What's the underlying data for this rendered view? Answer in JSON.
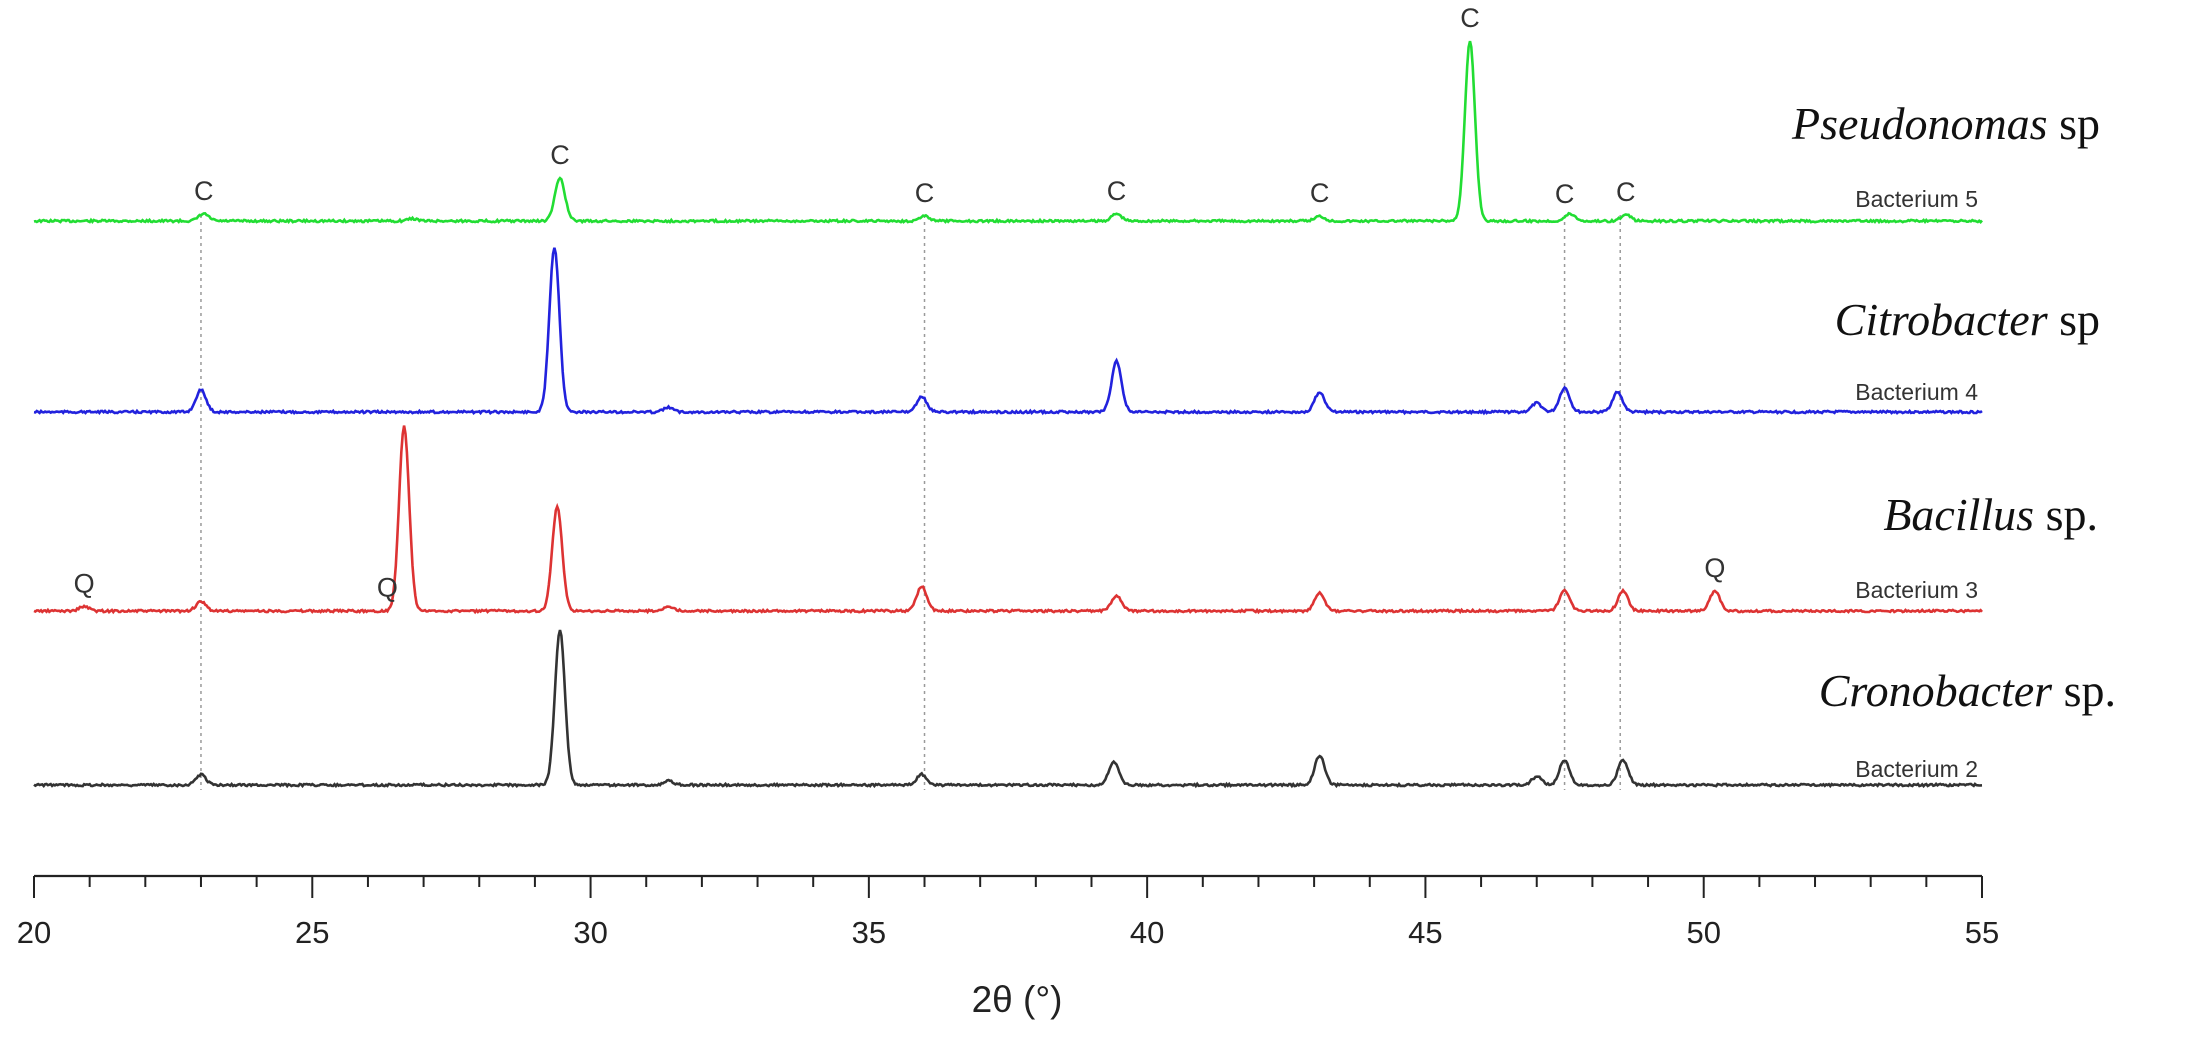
{
  "chart_data": {
    "type": "line",
    "xlabel": "2θ (°)",
    "ylabel": "",
    "xlim": [
      20,
      55
    ],
    "xticks": [
      20,
      25,
      30,
      35,
      40,
      45,
      50,
      55
    ],
    "grid": false,
    "reference_lines_x": [
      23.0,
      36.0,
      47.5,
      48.5
    ],
    "series": [
      {
        "name": "Bacterium 5",
        "species": "Pseudonomas",
        "species_suffix": " sp",
        "color": "#22dd33",
        "peaks": [
          [
            23.05,
            0.03
          ],
          [
            26.8,
            0.01
          ],
          [
            29.45,
            0.18
          ],
          [
            36.0,
            0.02
          ],
          [
            39.45,
            0.03
          ],
          [
            43.1,
            0.02
          ],
          [
            45.8,
            0.75
          ],
          [
            47.6,
            0.03
          ],
          [
            48.6,
            0.025
          ]
        ],
        "peak_labels": [
          {
            "x": 23.05,
            "text": "C"
          },
          {
            "x": 29.45,
            "text": "C"
          },
          {
            "x": 36.0,
            "text": "C"
          },
          {
            "x": 39.45,
            "text": "C"
          },
          {
            "x": 43.1,
            "text": "C"
          },
          {
            "x": 45.8,
            "text": "C"
          },
          {
            "x": 47.5,
            "text": "C"
          },
          {
            "x": 48.6,
            "text": "C"
          }
        ]
      },
      {
        "name": "Bacterium 4",
        "species": "Citrobacter",
        "species_suffix": " sp",
        "color": "#2222dd",
        "peaks": [
          [
            23.0,
            0.1
          ],
          [
            29.35,
            0.75
          ],
          [
            31.4,
            0.02
          ],
          [
            35.95,
            0.07
          ],
          [
            39.45,
            0.23
          ],
          [
            43.1,
            0.09
          ],
          [
            47.0,
            0.04
          ],
          [
            47.5,
            0.11
          ],
          [
            48.45,
            0.09
          ]
        ],
        "peak_labels": []
      },
      {
        "name": "Bacterium 3",
        "species": "Bacillus",
        "species_suffix": " sp.",
        "color": "#dd3333",
        "peaks": [
          [
            20.9,
            0.02
          ],
          [
            23.0,
            0.04
          ],
          [
            26.65,
            0.82
          ],
          [
            29.4,
            0.46
          ],
          [
            31.4,
            0.02
          ],
          [
            35.95,
            0.11
          ],
          [
            39.45,
            0.07
          ],
          [
            43.1,
            0.08
          ],
          [
            47.5,
            0.09
          ],
          [
            48.55,
            0.09
          ],
          [
            50.2,
            0.09
          ]
        ],
        "peak_labels": [
          {
            "x": 20.9,
            "text": "Q"
          },
          {
            "x": 26.35,
            "text": "Q"
          },
          {
            "x": 50.2,
            "text": "Q"
          }
        ]
      },
      {
        "name": "Bacterium 2",
        "species": "Cronobacter",
        "species_suffix": " sp.",
        "color": "#333333",
        "peaks": [
          [
            23.0,
            0.05
          ],
          [
            29.45,
            0.74
          ],
          [
            31.4,
            0.02
          ],
          [
            35.95,
            0.05
          ],
          [
            39.4,
            0.11
          ],
          [
            43.1,
            0.14
          ],
          [
            47.0,
            0.04
          ],
          [
            47.5,
            0.12
          ],
          [
            48.55,
            0.12
          ]
        ],
        "peak_labels": []
      }
    ]
  }
}
